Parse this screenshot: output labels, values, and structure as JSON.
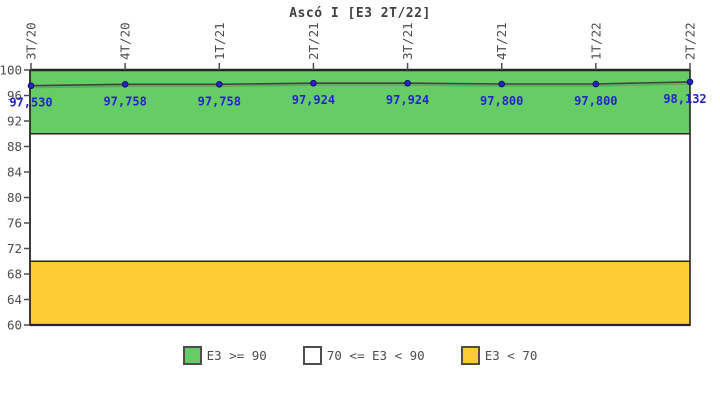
{
  "title": "Ascó I [E3 2T/22]",
  "chart_data": {
    "type": "line",
    "title": "Ascó I [E3 2T/22]",
    "categories": [
      "3T/20",
      "4T/20",
      "1T/21",
      "2T/21",
      "3T/21",
      "4T/21",
      "1T/22",
      "2T/22"
    ],
    "series": [
      {
        "name": "E3",
        "values": [
          97.53,
          97.758,
          97.758,
          97.924,
          97.924,
          97.8,
          97.8,
          98.132
        ]
      }
    ],
    "point_labels": [
      "97,530",
      "97,758",
      "97,758",
      "97,924",
      "97,924",
      "97,800",
      "97,800",
      "98,132"
    ],
    "xlabel": "",
    "ylabel": "",
    "ylim": [
      60,
      100
    ],
    "yticks": [
      60,
      64,
      68,
      72,
      76,
      80,
      84,
      88,
      92,
      96,
      100
    ],
    "grid": false,
    "legend_position": "bottom",
    "bands": [
      {
        "label": "E3 >= 90",
        "from": 90,
        "to": 100,
        "color": "#66CC66"
      },
      {
        "label": "70 <= E3 < 90",
        "from": 70,
        "to": 90,
        "color": "#FFFFFF"
      },
      {
        "label": "E3 < 70",
        "from": 60,
        "to": 70,
        "color": "#FFCC33"
      }
    ]
  },
  "colors": {
    "band_green": "#66CC66",
    "band_white": "#FFFFFF",
    "band_yellow": "#FFCC33",
    "line": "#404040",
    "point": "#2424CC",
    "value_label": "#2424CC",
    "axis_text": "#4D4D4D",
    "border": "#262626",
    "title_text": "#404040"
  }
}
